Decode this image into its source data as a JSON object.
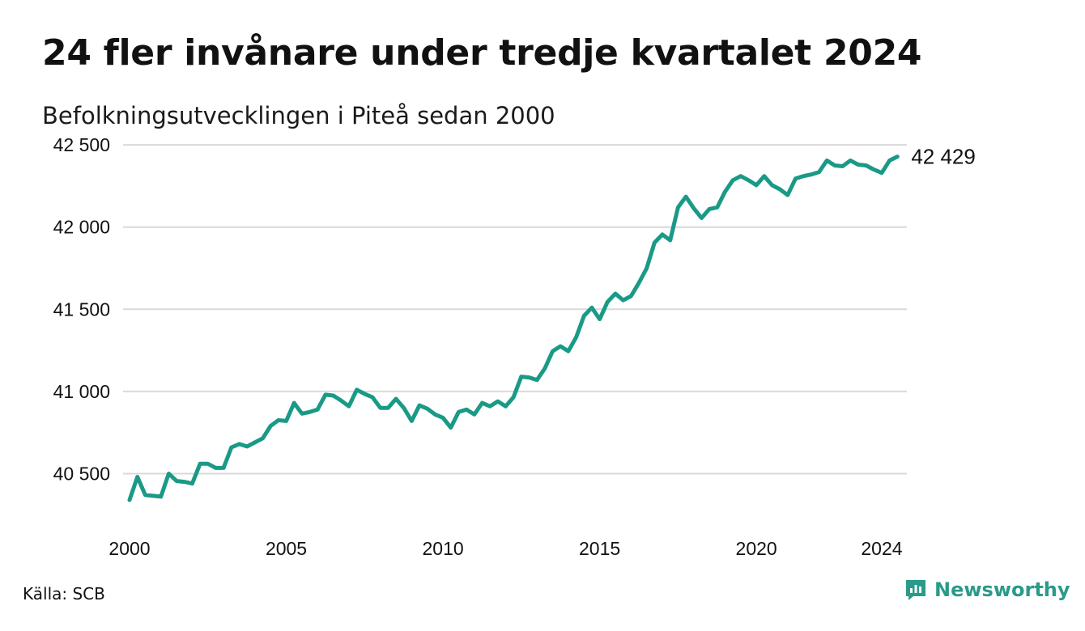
{
  "title": "24 fler invånare under tredje kvartalet 2024",
  "subtitle": "Befolkningsutvecklingen i Piteå sedan 2000",
  "source": "Källa: SCB",
  "brand": {
    "name": "Newsworthy",
    "color": "#2a9a8a",
    "icon": "newsworthy-chart-icon"
  },
  "colors": {
    "line": "#1a9a86",
    "grid": "#d9d9d9"
  },
  "chart_data": {
    "type": "line",
    "title": "24 fler invånare under tredje kvartalet 2024",
    "subtitle": "Befolkningsutvecklingen i Piteå sedan 2000",
    "xlabel": "",
    "ylabel": "",
    "xlim": [
      2000,
      2024.75
    ],
    "ylim": [
      40330,
      42540
    ],
    "x_ticks": [
      2000,
      2005,
      2010,
      2015,
      2020,
      2024
    ],
    "x_tick_labels": [
      "2000",
      "2005",
      "2010",
      "2015",
      "2020",
      "2024"
    ],
    "y_ticks": [
      40500,
      41000,
      41500,
      42000,
      42500
    ],
    "y_tick_labels": [
      "40 500",
      "41 000",
      "41 500",
      "42 000",
      "42 500"
    ],
    "grid": "horizontal",
    "end_label": "42 429",
    "series": [
      {
        "x": [
          2000.0,
          2000.25,
          2000.5,
          2000.75,
          2001.0,
          2001.25,
          2001.5,
          2001.75,
          2002.0,
          2002.25,
          2002.5,
          2002.75,
          2003.0,
          2003.25,
          2003.5,
          2003.75,
          2004.0,
          2004.25,
          2004.5,
          2004.75,
          2005.0,
          2005.25,
          2005.5,
          2005.75,
          2006.0,
          2006.25,
          2006.5,
          2006.75,
          2007.0,
          2007.25,
          2007.5,
          2007.75,
          2008.0,
          2008.25,
          2008.5,
          2008.75,
          2009.0,
          2009.25,
          2009.5,
          2009.75,
          2010.0,
          2010.25,
          2010.5,
          2010.75,
          2011.0,
          2011.25,
          2011.5,
          2011.75,
          2012.0,
          2012.25,
          2012.5,
          2012.75,
          2013.0,
          2013.25,
          2013.5,
          2013.75,
          2014.0,
          2014.25,
          2014.5,
          2014.75,
          2015.0,
          2015.25,
          2015.5,
          2015.75,
          2016.0,
          2016.25,
          2016.5,
          2016.75,
          2017.0,
          2017.25,
          2017.5,
          2017.75,
          2018.0,
          2018.25,
          2018.5,
          2018.75,
          2019.0,
          2019.25,
          2019.5,
          2019.75,
          2020.0,
          2020.25,
          2020.5,
          2020.75,
          2021.0,
          2021.25,
          2021.5,
          2021.75,
          2022.0,
          2022.25,
          2022.5,
          2022.75,
          2023.0,
          2023.25,
          2023.5,
          2023.75,
          2024.0,
          2024.25,
          2024.5
        ],
        "y": [
          40340,
          40480,
          40370,
          40365,
          40360,
          40500,
          40455,
          40450,
          40440,
          40560,
          40560,
          40535,
          40535,
          40660,
          40680,
          40665,
          40690,
          40715,
          40790,
          40825,
          40820,
          40930,
          40865,
          40875,
          40890,
          40980,
          40975,
          40945,
          40910,
          41010,
          40985,
          40965,
          40900,
          40900,
          40955,
          40900,
          40820,
          40915,
          40895,
          40860,
          40840,
          40780,
          40875,
          40890,
          40860,
          40930,
          40910,
          40940,
          40910,
          40965,
          41090,
          41085,
          41070,
          41140,
          41245,
          41275,
          41245,
          41330,
          41460,
          41510,
          41440,
          41545,
          41595,
          41555,
          41580,
          41660,
          41750,
          41905,
          41955,
          41920,
          42120,
          42185,
          42115,
          42055,
          42110,
          42120,
          42215,
          42285,
          42310,
          42285,
          42255,
          42310,
          42255,
          42230,
          42195,
          42295,
          42310,
          42320,
          42335,
          42405,
          42375,
          42370,
          42405,
          42380,
          42375,
          42350,
          42330,
          42405,
          42429
        ]
      }
    ]
  }
}
